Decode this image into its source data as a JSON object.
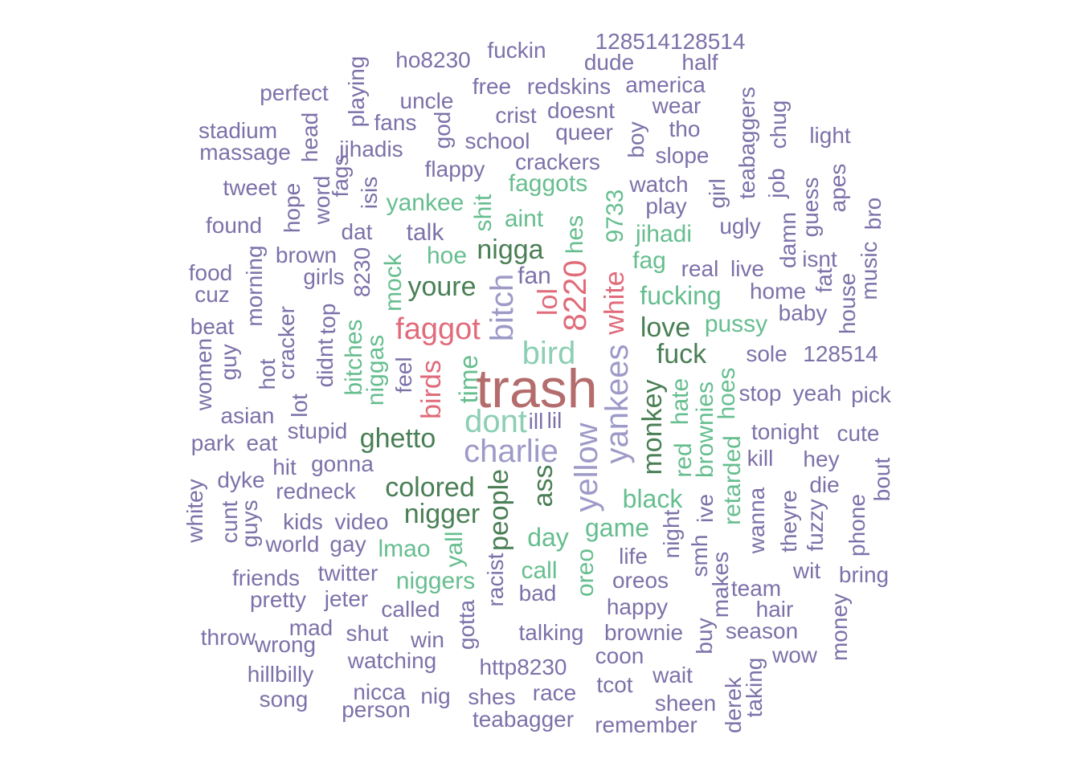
{
  "palette": {
    "xl": "#b46c6c",
    "red": "#e06c7b",
    "teal": "#8ccfb4",
    "green": "#66be8f",
    "dark": "#4a7f55",
    "lav": "#9e9ac8",
    "purple": "#7d71a9"
  },
  "words": [
    {
      "text": "trash",
      "color": "xl",
      "tier": 0
    },
    {
      "text": "bird",
      "color": "teal",
      "tier": 1
    },
    {
      "text": "charlie",
      "color": "lav",
      "tier": 1
    },
    {
      "text": "dont",
      "color": "teal",
      "tier": 1
    },
    {
      "text": "yankees",
      "color": "lav",
      "tier": 1
    },
    {
      "text": "yellow",
      "color": "lav",
      "tier": 1
    },
    {
      "text": "bitch",
      "color": "lav",
      "tier": 1
    },
    {
      "text": "8220",
      "color": "red",
      "tier": 1
    },
    {
      "text": "faggot",
      "color": "red",
      "tier": 1
    },
    {
      "text": "nigga",
      "color": "dark",
      "tier": 2
    },
    {
      "text": "youre",
      "color": "dark",
      "tier": 2
    },
    {
      "text": "white",
      "color": "red",
      "tier": 2
    },
    {
      "text": "birds",
      "color": "red",
      "tier": 2
    },
    {
      "text": "lol",
      "color": "red",
      "tier": 2
    },
    {
      "text": "ghetto",
      "color": "dark",
      "tier": 2
    },
    {
      "text": "colored",
      "color": "dark",
      "tier": 2
    },
    {
      "text": "nigger",
      "color": "dark",
      "tier": 2
    },
    {
      "text": "people",
      "color": "dark",
      "tier": 2
    },
    {
      "text": "ass",
      "color": "dark",
      "tier": 2
    },
    {
      "text": "monkey",
      "color": "dark",
      "tier": 2
    },
    {
      "text": "love",
      "color": "dark",
      "tier": 2
    },
    {
      "text": "fuck",
      "color": "dark",
      "tier": 2
    },
    {
      "text": "fucking",
      "color": "green",
      "tier": 2
    },
    {
      "text": "time",
      "color": "green",
      "tier": 2
    },
    {
      "text": "day",
      "color": "green",
      "tier": 2
    },
    {
      "text": "game",
      "color": "green",
      "tier": 2
    },
    {
      "text": "black",
      "color": "green",
      "tier": 2
    },
    {
      "text": "hes",
      "color": "green",
      "tier": 3
    },
    {
      "text": "9733",
      "color": "green",
      "tier": 3
    },
    {
      "text": "fag",
      "color": "green",
      "tier": 3
    },
    {
      "text": "pussy",
      "color": "green",
      "tier": 3
    },
    {
      "text": "hate",
      "color": "green",
      "tier": 3
    },
    {
      "text": "red",
      "color": "green",
      "tier": 3
    },
    {
      "text": "brownies",
      "color": "green",
      "tier": 3
    },
    {
      "text": "hoes",
      "color": "green",
      "tier": 3
    },
    {
      "text": "retarded",
      "color": "green",
      "tier": 3
    },
    {
      "text": "jihadi",
      "color": "green",
      "tier": 3
    },
    {
      "text": "faggots",
      "color": "green",
      "tier": 3
    },
    {
      "text": "aint",
      "color": "green",
      "tier": 3
    },
    {
      "text": "yankee",
      "color": "green",
      "tier": 3
    },
    {
      "text": "shit",
      "color": "green",
      "tier": 3
    },
    {
      "text": "hoe",
      "color": "green",
      "tier": 3
    },
    {
      "text": "mock",
      "color": "green",
      "tier": 3
    },
    {
      "text": "bitches",
      "color": "green",
      "tier": 3
    },
    {
      "text": "niggas",
      "color": "green",
      "tier": 3
    },
    {
      "text": "lmao",
      "color": "green",
      "tier": 3
    },
    {
      "text": "yall",
      "color": "green",
      "tier": 3
    },
    {
      "text": "niggers",
      "color": "green",
      "tier": 3
    },
    {
      "text": "call",
      "color": "green",
      "tier": 3
    },
    {
      "text": "oreo",
      "color": "green",
      "tier": 3
    },
    {
      "text": "fan",
      "color": "purple",
      "tier": 3
    },
    {
      "text": "talk",
      "color": "purple",
      "tier": 3
    },
    {
      "text": "128514128514",
      "color": "purple",
      "tier": 4
    },
    {
      "text": "ho8230",
      "color": "purple",
      "tier": 4
    },
    {
      "text": "fuckin",
      "color": "purple",
      "tier": 4
    },
    {
      "text": "dude",
      "color": "purple",
      "tier": 4
    },
    {
      "text": "half",
      "color": "purple",
      "tier": 4
    },
    {
      "text": "perfect",
      "color": "purple",
      "tier": 4
    },
    {
      "text": "playing",
      "color": "purple",
      "tier": 4
    },
    {
      "text": "uncle",
      "color": "purple",
      "tier": 4
    },
    {
      "text": "free",
      "color": "purple",
      "tier": 4
    },
    {
      "text": "redskins",
      "color": "purple",
      "tier": 4
    },
    {
      "text": "america",
      "color": "purple",
      "tier": 4
    },
    {
      "text": "wear",
      "color": "purple",
      "tier": 4
    },
    {
      "text": "crist",
      "color": "purple",
      "tier": 4
    },
    {
      "text": "doesnt",
      "color": "purple",
      "tier": 4
    },
    {
      "text": "teabaggers",
      "color": "purple",
      "tier": 4
    },
    {
      "text": "chug",
      "color": "purple",
      "tier": 4
    },
    {
      "text": "stadium",
      "color": "purple",
      "tier": 4
    },
    {
      "text": "head",
      "color": "purple",
      "tier": 4
    },
    {
      "text": "fans",
      "color": "purple",
      "tier": 4
    },
    {
      "text": "god",
      "color": "purple",
      "tier": 4
    },
    {
      "text": "queer",
      "color": "purple",
      "tier": 4
    },
    {
      "text": "boy",
      "color": "purple",
      "tier": 4
    },
    {
      "text": "tho",
      "color": "purple",
      "tier": 4
    },
    {
      "text": "light",
      "color": "purple",
      "tier": 4
    },
    {
      "text": "massage",
      "color": "purple",
      "tier": 4
    },
    {
      "text": "jihadis",
      "color": "purple",
      "tier": 4
    },
    {
      "text": "school",
      "color": "purple",
      "tier": 4
    },
    {
      "text": "slope",
      "color": "purple",
      "tier": 4
    },
    {
      "text": "crackers",
      "color": "purple",
      "tier": 4
    },
    {
      "text": "flappy",
      "color": "purple",
      "tier": 4
    },
    {
      "text": "job",
      "color": "purple",
      "tier": 4
    },
    {
      "text": "tweet",
      "color": "purple",
      "tier": 4
    },
    {
      "text": "fags",
      "color": "purple",
      "tier": 4
    },
    {
      "text": "word",
      "color": "purple",
      "tier": 4
    },
    {
      "text": "hope",
      "color": "purple",
      "tier": 4
    },
    {
      "text": "isis",
      "color": "purple",
      "tier": 4
    },
    {
      "text": "watch",
      "color": "purple",
      "tier": 4
    },
    {
      "text": "girl",
      "color": "purple",
      "tier": 4
    },
    {
      "text": "guess",
      "color": "purple",
      "tier": 4
    },
    {
      "text": "apes",
      "color": "purple",
      "tier": 4
    },
    {
      "text": "play",
      "color": "purple",
      "tier": 4
    },
    {
      "text": "found",
      "color": "purple",
      "tier": 4
    },
    {
      "text": "dat",
      "color": "purple",
      "tier": 4
    },
    {
      "text": "ugly",
      "color": "purple",
      "tier": 4
    },
    {
      "text": "damn",
      "color": "purple",
      "tier": 4
    },
    {
      "text": "bro",
      "color": "purple",
      "tier": 4
    },
    {
      "text": "brown",
      "color": "purple",
      "tier": 4
    },
    {
      "text": "8230",
      "color": "purple",
      "tier": 4
    },
    {
      "text": "isnt",
      "color": "purple",
      "tier": 4
    },
    {
      "text": "music",
      "color": "purple",
      "tier": 4
    },
    {
      "text": "food",
      "color": "purple",
      "tier": 4
    },
    {
      "text": "girls",
      "color": "purple",
      "tier": 4
    },
    {
      "text": "morning",
      "color": "purple",
      "tier": 4
    },
    {
      "text": "real",
      "color": "purple",
      "tier": 4
    },
    {
      "text": "live",
      "color": "purple",
      "tier": 4
    },
    {
      "text": "fat",
      "color": "purple",
      "tier": 4
    },
    {
      "text": "cuz",
      "color": "purple",
      "tier": 4
    },
    {
      "text": "home",
      "color": "purple",
      "tier": 4
    },
    {
      "text": "house",
      "color": "purple",
      "tier": 4
    },
    {
      "text": "top",
      "color": "purple",
      "tier": 4
    },
    {
      "text": "baby",
      "color": "purple",
      "tier": 4
    },
    {
      "text": "beat",
      "color": "purple",
      "tier": 4
    },
    {
      "text": "cracker",
      "color": "purple",
      "tier": 4
    },
    {
      "text": "didnt",
      "color": "purple",
      "tier": 4
    },
    {
      "text": "sole",
      "color": "purple",
      "tier": 4
    },
    {
      "text": "128514",
      "color": "purple",
      "tier": 4
    },
    {
      "text": "guy",
      "color": "purple",
      "tier": 4
    },
    {
      "text": "women",
      "color": "purple",
      "tier": 4
    },
    {
      "text": "hot",
      "color": "purple",
      "tier": 4
    },
    {
      "text": "feel",
      "color": "purple",
      "tier": 4
    },
    {
      "text": "lot",
      "color": "purple",
      "tier": 4
    },
    {
      "text": "stop",
      "color": "purple",
      "tier": 4
    },
    {
      "text": "yeah",
      "color": "purple",
      "tier": 4
    },
    {
      "text": "pick",
      "color": "purple",
      "tier": 4
    },
    {
      "text": "asian",
      "color": "purple",
      "tier": 4
    },
    {
      "text": "ill",
      "color": "purple",
      "tier": 4
    },
    {
      "text": "lil",
      "color": "purple",
      "tier": 4
    },
    {
      "text": "stupid",
      "color": "purple",
      "tier": 4
    },
    {
      "text": "tonight",
      "color": "purple",
      "tier": 4
    },
    {
      "text": "cute",
      "color": "purple",
      "tier": 4
    },
    {
      "text": "park",
      "color": "purple",
      "tier": 4
    },
    {
      "text": "eat",
      "color": "purple",
      "tier": 4
    },
    {
      "text": "kill",
      "color": "purple",
      "tier": 4
    },
    {
      "text": "hey",
      "color": "purple",
      "tier": 4
    },
    {
      "text": "hit",
      "color": "purple",
      "tier": 4
    },
    {
      "text": "gonna",
      "color": "purple",
      "tier": 4
    },
    {
      "text": "bout",
      "color": "purple",
      "tier": 4
    },
    {
      "text": "whitey",
      "color": "purple",
      "tier": 4
    },
    {
      "text": "dyke",
      "color": "purple",
      "tier": 4
    },
    {
      "text": "die",
      "color": "purple",
      "tier": 4
    },
    {
      "text": "redneck",
      "color": "purple",
      "tier": 4
    },
    {
      "text": "wanna",
      "color": "purple",
      "tier": 4
    },
    {
      "text": "cunt",
      "color": "purple",
      "tier": 4
    },
    {
      "text": "guys",
      "color": "purple",
      "tier": 4
    },
    {
      "text": "kids",
      "color": "purple",
      "tier": 4
    },
    {
      "text": "video",
      "color": "purple",
      "tier": 4
    },
    {
      "text": "ive",
      "color": "purple",
      "tier": 4
    },
    {
      "text": "theyre",
      "color": "purple",
      "tier": 4
    },
    {
      "text": "fuzzy",
      "color": "purple",
      "tier": 4
    },
    {
      "text": "phone",
      "color": "purple",
      "tier": 4
    },
    {
      "text": "night",
      "color": "purple",
      "tier": 4
    },
    {
      "text": "world",
      "color": "purple",
      "tier": 4
    },
    {
      "text": "gay",
      "color": "purple",
      "tier": 4
    },
    {
      "text": "smh",
      "color": "purple",
      "tier": 4
    },
    {
      "text": "life",
      "color": "purple",
      "tier": 4
    },
    {
      "text": "wit",
      "color": "purple",
      "tier": 4
    },
    {
      "text": "bring",
      "color": "purple",
      "tier": 4
    },
    {
      "text": "friends",
      "color": "purple",
      "tier": 4
    },
    {
      "text": "twitter",
      "color": "purple",
      "tier": 4
    },
    {
      "text": "racist",
      "color": "purple",
      "tier": 4
    },
    {
      "text": "oreos",
      "color": "purple",
      "tier": 4
    },
    {
      "text": "makes",
      "color": "purple",
      "tier": 4
    },
    {
      "text": "team",
      "color": "purple",
      "tier": 4
    },
    {
      "text": "pretty",
      "color": "purple",
      "tier": 4
    },
    {
      "text": "jeter",
      "color": "purple",
      "tier": 4
    },
    {
      "text": "bad",
      "color": "purple",
      "tier": 4
    },
    {
      "text": "happy",
      "color": "purple",
      "tier": 4
    },
    {
      "text": "hair",
      "color": "purple",
      "tier": 4
    },
    {
      "text": "called",
      "color": "purple",
      "tier": 4
    },
    {
      "text": "gotta",
      "color": "purple",
      "tier": 4
    },
    {
      "text": "money",
      "color": "purple",
      "tier": 4
    },
    {
      "text": "mad",
      "color": "purple",
      "tier": 4
    },
    {
      "text": "throw",
      "color": "purple",
      "tier": 4
    },
    {
      "text": "shut",
      "color": "purple",
      "tier": 4
    },
    {
      "text": "talking",
      "color": "purple",
      "tier": 4
    },
    {
      "text": "brownie",
      "color": "purple",
      "tier": 4
    },
    {
      "text": "buy",
      "color": "purple",
      "tier": 4
    },
    {
      "text": "season",
      "color": "purple",
      "tier": 4
    },
    {
      "text": "wrong",
      "color": "purple",
      "tier": 4
    },
    {
      "text": "win",
      "color": "purple",
      "tier": 4
    },
    {
      "text": "wow",
      "color": "purple",
      "tier": 4
    },
    {
      "text": "watching",
      "color": "purple",
      "tier": 4
    },
    {
      "text": "coon",
      "color": "purple",
      "tier": 4
    },
    {
      "text": "http8230",
      "color": "purple",
      "tier": 4
    },
    {
      "text": "hillbilly",
      "color": "purple",
      "tier": 4
    },
    {
      "text": "wait",
      "color": "purple",
      "tier": 4
    },
    {
      "text": "derek",
      "color": "purple",
      "tier": 4
    },
    {
      "text": "taking",
      "color": "purple",
      "tier": 4
    },
    {
      "text": "tcot",
      "color": "purple",
      "tier": 4
    },
    {
      "text": "nicca",
      "color": "purple",
      "tier": 4
    },
    {
      "text": "race",
      "color": "purple",
      "tier": 4
    },
    {
      "text": "song",
      "color": "purple",
      "tier": 4
    },
    {
      "text": "nig",
      "color": "purple",
      "tier": 4
    },
    {
      "text": "shes",
      "color": "purple",
      "tier": 4
    },
    {
      "text": "sheen",
      "color": "purple",
      "tier": 4
    },
    {
      "text": "person",
      "color": "purple",
      "tier": 4
    },
    {
      "text": "teabagger",
      "color": "purple",
      "tier": 4
    },
    {
      "text": "remember",
      "color": "purple",
      "tier": 4
    }
  ]
}
